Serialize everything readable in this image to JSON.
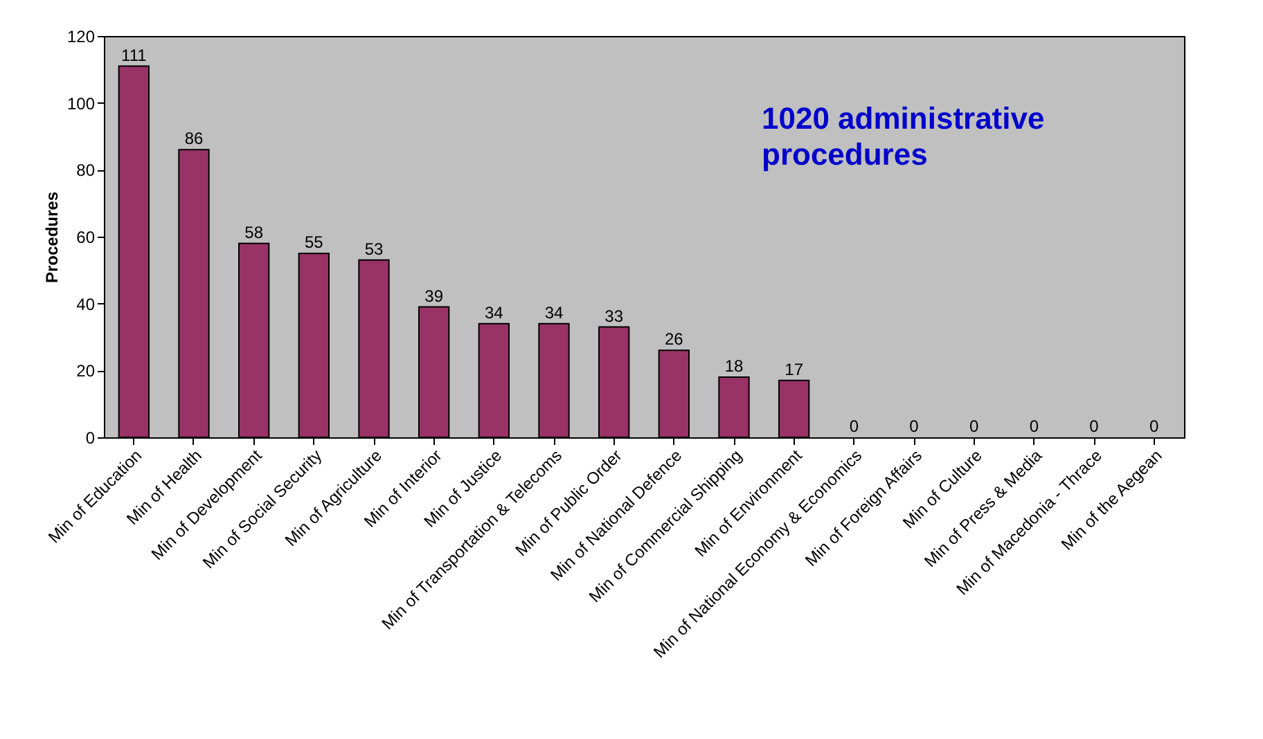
{
  "chart_data": {
    "type": "bar",
    "categories": [
      "Min of Education",
      "Min of Health",
      "Min of Development",
      "Min of Social Security",
      "Min of Agriculture",
      "Min of Interior",
      "Min of Justice",
      "Min of Transportation & Telecoms",
      "Min of Public Order",
      "Min of National Defence",
      "Min of Commercial Shipping",
      "Min of Environment",
      "Min of National Economy & Economics",
      "Min of Foreign Affairs",
      "Min of Culture",
      "Min of Press & Media",
      "Min of Macedonia - Thrace",
      "Min of the Aegean"
    ],
    "values": [
      111,
      86,
      58,
      55,
      53,
      39,
      34,
      34,
      33,
      26,
      18,
      17,
      0,
      0,
      0,
      0,
      0,
      0
    ],
    "color": "#993366",
    "ylabel": "Procedures",
    "ylim": [
      0,
      120
    ],
    "yticks": [
      0,
      20,
      40,
      60,
      80,
      100,
      120
    ],
    "annotations": [
      "1020 administrative procedures"
    ],
    "data_labels": true,
    "grid": false
  }
}
